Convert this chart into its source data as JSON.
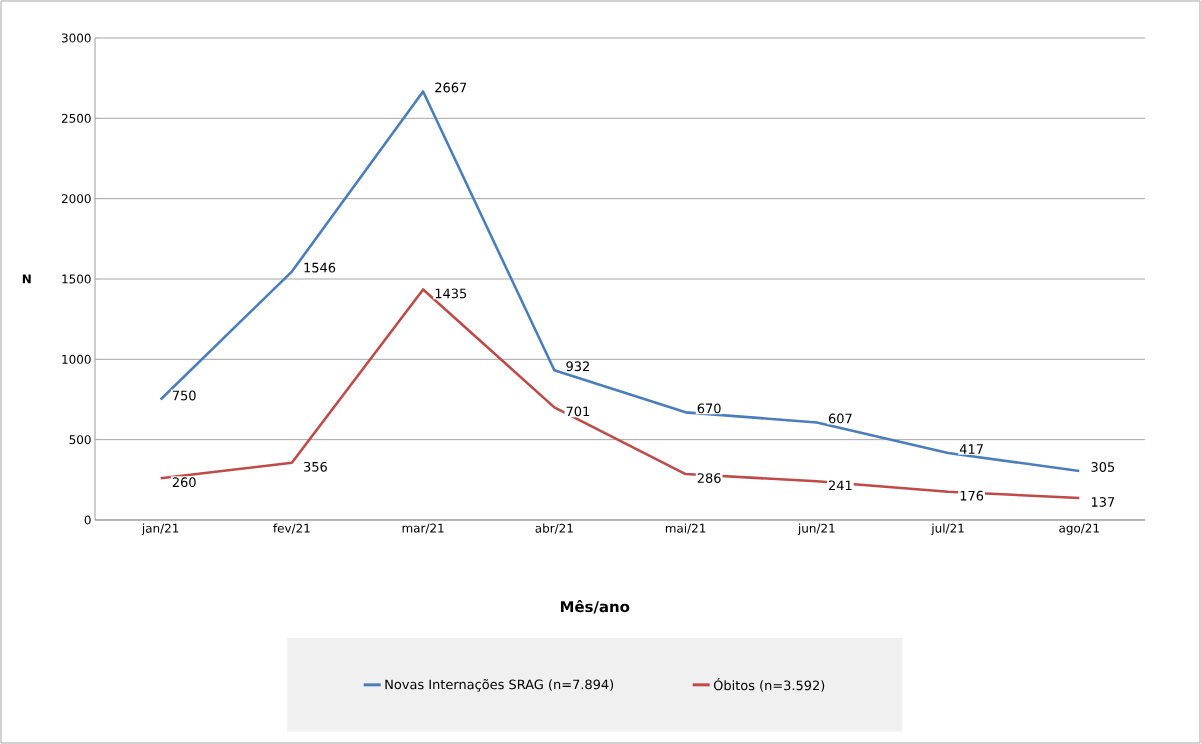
{
  "chart_data": {
    "type": "line",
    "xlabel": "Mês/ano",
    "ylabel": "N",
    "categories": [
      "jan/21",
      "fev/21",
      "mar/21",
      "abr/21",
      "mai/21",
      "jun/21",
      "jul/21",
      "ago/21"
    ],
    "series": [
      {
        "name": "Novas Internações SRAG (n=7.894)",
        "color": "#4a7ebb",
        "values": [
          750,
          1546,
          2667,
          932,
          670,
          607,
          417,
          305
        ]
      },
      {
        "name": "Óbitos (n=3.592)",
        "color": "#be4b48",
        "values": [
          260,
          356,
          1435,
          701,
          286,
          241,
          176,
          137
        ]
      }
    ],
    "ylim": [
      0,
      3000
    ],
    "yticks": [
      0,
      500,
      1000,
      1500,
      2000,
      2500,
      3000
    ],
    "grid": "y",
    "legend": "bottom",
    "data_labels": true,
    "marker": "none",
    "line_style": "solid"
  }
}
